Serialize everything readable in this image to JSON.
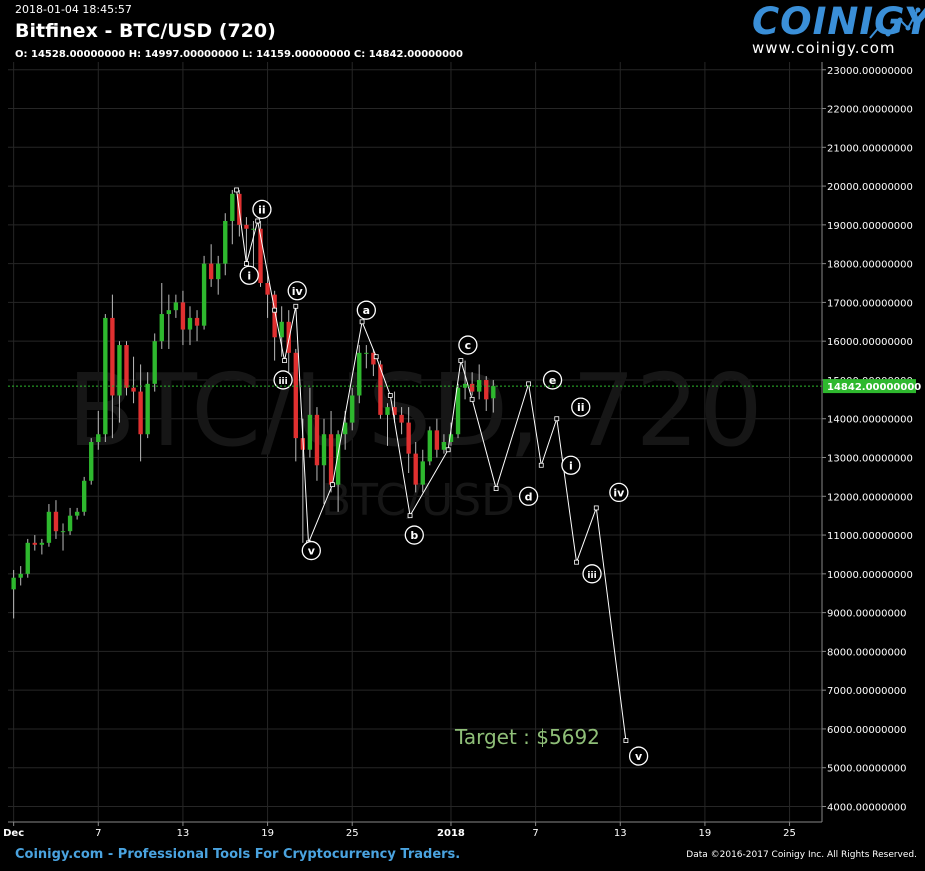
{
  "header": {
    "timestamp": "2018-01-04 18:45:57",
    "title": "Bitfinex - BTC/USD (720)",
    "ohlc": "O: 14528.00000000 H: 14997.00000000 L: 14159.00000000 C: 14842.00000000"
  },
  "logo": {
    "word": "COINIGY",
    "url": "www.coinigy.com"
  },
  "watermark": {
    "big": "BTC/USD, 720",
    "small": "BTC/USD"
  },
  "footer": {
    "left": "Coinigy.com - Professional Tools For Cryptocurrency Traders.",
    "right": "Data ©2016-2017 Coinigy Inc. All Rights Reserved."
  },
  "colors": {
    "up": "#2eb82e",
    "down": "#e03030",
    "line": "#ffffff",
    "grid": "#262626",
    "last_price_bg": "#2eb82e",
    "target": "#8fbf78"
  },
  "chart_data": {
    "type": "candlestick",
    "y_ticks": [
      "4000.00000000",
      "5000.00000000",
      "6000.00000000",
      "7000.00000000",
      "8000.00000000",
      "9000.00000000",
      "10000.00000000",
      "11000.00000000",
      "12000.00000000",
      "13000.00000000",
      "14000.00000000",
      "15000.00000000",
      "16000.00000000",
      "17000.00000000",
      "18000.00000000",
      "19000.00000000",
      "20000.00000000",
      "21000.00000000",
      "22000.00000000",
      "23000.00000000"
    ],
    "ylim": [
      3600,
      23200
    ],
    "x_ticks": [
      "Dec",
      "7",
      "13",
      "19",
      "25",
      "2018",
      "7",
      "13",
      "19",
      "25"
    ],
    "x_tick_days": [
      1,
      7,
      13,
      19,
      25,
      32,
      38,
      44,
      50,
      56
    ],
    "xlim": [
      0.6,
      58.3
    ],
    "last_price": 14842,
    "last_price_label": "14842.00000000",
    "annotation": "Target : $5692",
    "annotation_point": [
      44.9,
      5692
    ],
    "candles": [
      {
        "o": 9600,
        "h": 10100,
        "l": 8850,
        "c": 9900
      },
      {
        "o": 9900,
        "h": 10200,
        "l": 9700,
        "c": 10000
      },
      {
        "o": 10000,
        "h": 10900,
        "l": 9900,
        "c": 10800
      },
      {
        "o": 10800,
        "h": 11000,
        "l": 10600,
        "c": 10750
      },
      {
        "o": 10750,
        "h": 10900,
        "l": 10500,
        "c": 10800
      },
      {
        "o": 10800,
        "h": 11800,
        "l": 10700,
        "c": 11600
      },
      {
        "o": 11600,
        "h": 11900,
        "l": 10900,
        "c": 11100
      },
      {
        "o": 11100,
        "h": 11300,
        "l": 10600,
        "c": 11100
      },
      {
        "o": 11100,
        "h": 11700,
        "l": 11000,
        "c": 11500
      },
      {
        "o": 11500,
        "h": 11700,
        "l": 11400,
        "c": 11600
      },
      {
        "o": 11600,
        "h": 12500,
        "l": 11500,
        "c": 12400
      },
      {
        "o": 12400,
        "h": 13500,
        "l": 12300,
        "c": 13400
      },
      {
        "o": 13400,
        "h": 14200,
        "l": 13200,
        "c": 13600
      },
      {
        "o": 13600,
        "h": 16700,
        "l": 13400,
        "c": 16600
      },
      {
        "o": 16600,
        "h": 17200,
        "l": 13500,
        "c": 14600
      },
      {
        "o": 14600,
        "h": 16000,
        "l": 13900,
        "c": 15900
      },
      {
        "o": 15900,
        "h": 16000,
        "l": 14600,
        "c": 14800
      },
      {
        "o": 14800,
        "h": 15600,
        "l": 14400,
        "c": 14700
      },
      {
        "o": 14700,
        "h": 15400,
        "l": 12900,
        "c": 13600
      },
      {
        "o": 13600,
        "h": 15200,
        "l": 13500,
        "c": 14900
      },
      {
        "o": 14900,
        "h": 16200,
        "l": 14700,
        "c": 16000
      },
      {
        "o": 16000,
        "h": 17500,
        "l": 15800,
        "c": 16700
      },
      {
        "o": 16700,
        "h": 17200,
        "l": 15800,
        "c": 16800
      },
      {
        "o": 16800,
        "h": 17200,
        "l": 16600,
        "c": 17000
      },
      {
        "o": 17000,
        "h": 17300,
        "l": 15900,
        "c": 16300
      },
      {
        "o": 16300,
        "h": 16900,
        "l": 15900,
        "c": 16600
      },
      {
        "o": 16600,
        "h": 16800,
        "l": 16000,
        "c": 16400
      },
      {
        "o": 16400,
        "h": 18200,
        "l": 16300,
        "c": 18000
      },
      {
        "o": 18000,
        "h": 18500,
        "l": 17400,
        "c": 17600
      },
      {
        "o": 17600,
        "h": 18200,
        "l": 17200,
        "c": 18000
      },
      {
        "o": 18000,
        "h": 19300,
        "l": 17700,
        "c": 19100
      },
      {
        "o": 19100,
        "h": 19900,
        "l": 18500,
        "c": 19800
      },
      {
        "o": 19800,
        "h": 19900,
        "l": 18700,
        "c": 19000
      },
      {
        "o": 19000,
        "h": 19200,
        "l": 18000,
        "c": 18900
      },
      {
        "o": 18900,
        "h": 19100,
        "l": 17900,
        "c": 18900
      },
      {
        "o": 18900,
        "h": 19100,
        "l": 17400,
        "c": 17500
      },
      {
        "o": 17500,
        "h": 17800,
        "l": 16600,
        "c": 17200
      },
      {
        "o": 17200,
        "h": 17300,
        "l": 15500,
        "c": 16100
      },
      {
        "o": 16100,
        "h": 16900,
        "l": 15600,
        "c": 16500
      },
      {
        "o": 16500,
        "h": 16800,
        "l": 15200,
        "c": 15700
      },
      {
        "o": 15700,
        "h": 15800,
        "l": 12900,
        "c": 13500
      },
      {
        "o": 13500,
        "h": 14000,
        "l": 10800,
        "c": 13200
      },
      {
        "o": 13200,
        "h": 14800,
        "l": 13000,
        "c": 14100
      },
      {
        "o": 14100,
        "h": 14300,
        "l": 12400,
        "c": 12800
      },
      {
        "o": 12800,
        "h": 14000,
        "l": 11800,
        "c": 13600
      },
      {
        "o": 13600,
        "h": 14200,
        "l": 12100,
        "c": 12300
      },
      {
        "o": 12300,
        "h": 13700,
        "l": 11600,
        "c": 13600
      },
      {
        "o": 13600,
        "h": 14200,
        "l": 13200,
        "c": 13900
      },
      {
        "o": 13900,
        "h": 14800,
        "l": 13700,
        "c": 14600
      },
      {
        "o": 14600,
        "h": 15900,
        "l": 14400,
        "c": 15700
      },
      {
        "o": 15700,
        "h": 15900,
        "l": 15300,
        "c": 15700
      },
      {
        "o": 15700,
        "h": 15800,
        "l": 15100,
        "c": 15400
      },
      {
        "o": 15400,
        "h": 15500,
        "l": 14000,
        "c": 14100
      },
      {
        "o": 14100,
        "h": 14400,
        "l": 13300,
        "c": 14300
      },
      {
        "o": 14300,
        "h": 14700,
        "l": 13900,
        "c": 14100
      },
      {
        "o": 14100,
        "h": 14300,
        "l": 13600,
        "c": 13900
      },
      {
        "o": 13900,
        "h": 14300,
        "l": 12600,
        "c": 13100
      },
      {
        "o": 13100,
        "h": 13400,
        "l": 12100,
        "c": 12300
      },
      {
        "o": 12300,
        "h": 13200,
        "l": 12100,
        "c": 12900
      },
      {
        "o": 12900,
        "h": 13800,
        "l": 12800,
        "c": 13700
      },
      {
        "o": 13700,
        "h": 14000,
        "l": 13000,
        "c": 13200
      },
      {
        "o": 13200,
        "h": 13600,
        "l": 13100,
        "c": 13400
      },
      {
        "o": 13400,
        "h": 13900,
        "l": 13300,
        "c": 13600
      },
      {
        "o": 13600,
        "h": 14900,
        "l": 13500,
        "c": 14800
      },
      {
        "o": 14800,
        "h": 15500,
        "l": 14500,
        "c": 14900
      },
      {
        "o": 14900,
        "h": 15200,
        "l": 14600,
        "c": 14700
      },
      {
        "o": 14700,
        "h": 15400,
        "l": 14500,
        "c": 15000
      },
      {
        "o": 15000,
        "h": 15100,
        "l": 14200,
        "c": 14500
      },
      {
        "o": 14528,
        "h": 14997,
        "l": 14159,
        "c": 14842
      }
    ],
    "wave_path": [
      [
        16.8,
        19900
      ],
      [
        17.5,
        18000
      ],
      [
        18.3,
        19100
      ],
      [
        19.5,
        16800
      ],
      [
        20.2,
        15500
      ],
      [
        21.0,
        16900
      ],
      [
        21.9,
        10800
      ],
      [
        23.6,
        12300
      ],
      [
        25.7,
        16500
      ],
      [
        26.7,
        15600
      ],
      [
        27.7,
        14600
      ],
      [
        29.1,
        11500
      ],
      [
        31.8,
        13200
      ],
      [
        32.7,
        15500
      ],
      [
        33.5,
        14500
      ],
      [
        35.2,
        12200
      ],
      [
        37.5,
        14900
      ],
      [
        38.4,
        12800
      ],
      [
        39.5,
        14000
      ],
      [
        40.9,
        10300
      ],
      [
        42.3,
        11700
      ],
      [
        44.4,
        5700
      ]
    ],
    "wave_labels": [
      {
        "t": "i",
        "d": 17.7,
        "v": 17700
      },
      {
        "t": "ii",
        "d": 18.6,
        "v": 19400
      },
      {
        "t": "iii",
        "d": 20.1,
        "v": 15000
      },
      {
        "t": "iv",
        "d": 21.1,
        "v": 17300
      },
      {
        "t": "v",
        "d": 22.1,
        "v": 10600
      },
      {
        "t": "a",
        "d": 26.0,
        "v": 16800
      },
      {
        "t": "b",
        "d": 29.4,
        "v": 11000
      },
      {
        "t": "c",
        "d": 33.2,
        "v": 15900
      },
      {
        "t": "d",
        "d": 37.5,
        "v": 12000
      },
      {
        "t": "e",
        "d": 39.2,
        "v": 15000
      },
      {
        "t": "i",
        "d": 40.5,
        "v": 12800
      },
      {
        "t": "ii",
        "d": 41.2,
        "v": 14300
      },
      {
        "t": "iii",
        "d": 42.0,
        "v": 10000
      },
      {
        "t": "iv",
        "d": 43.9,
        "v": 12100
      },
      {
        "t": "v",
        "d": 45.3,
        "v": 5300
      }
    ]
  }
}
